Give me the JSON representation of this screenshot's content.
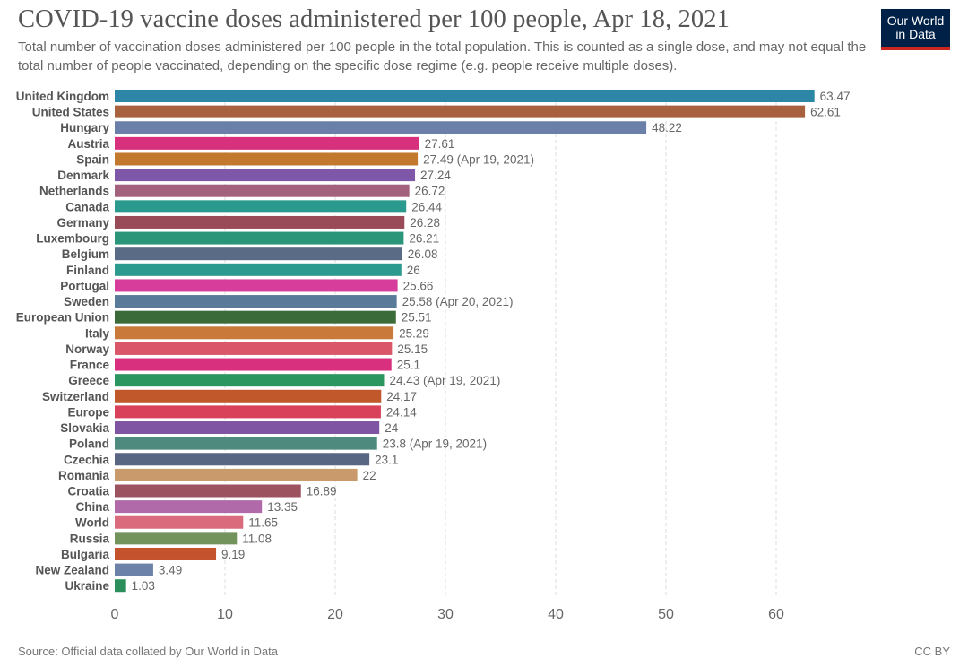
{
  "header": {
    "title": "COVID-19 vaccine doses administered per 100 people, Apr 18, 2021",
    "subtitle": "Total number of vaccination doses administered per 100 people in the total population. This is counted as a single dose, and may not equal the total number of people vaccinated, depending on the specific dose regime (e.g. people receive multiple doses).",
    "logo_line1": "Our World",
    "logo_line2": "in Data"
  },
  "footer": {
    "source": "Source: Official data collated by Our World in Data",
    "license": "CC BY"
  },
  "chart_data": {
    "type": "bar",
    "orientation": "horizontal",
    "title": "COVID-19 vaccine doses administered per 100 people, Apr 18, 2021",
    "xlabel": "",
    "ylabel": "",
    "xlim": [
      0,
      64
    ],
    "xticks": [
      0,
      10,
      20,
      30,
      40,
      50,
      60
    ],
    "grid": "vertical dashed",
    "categories": [
      "United Kingdom",
      "United States",
      "Hungary",
      "Austria",
      "Spain",
      "Denmark",
      "Netherlands",
      "Canada",
      "Germany",
      "Luxembourg",
      "Belgium",
      "Finland",
      "Portugal",
      "Sweden",
      "European Union",
      "Italy",
      "Norway",
      "France",
      "Greece",
      "Switzerland",
      "Europe",
      "Slovakia",
      "Poland",
      "Czechia",
      "Romania",
      "Croatia",
      "China",
      "World",
      "Russia",
      "Bulgaria",
      "New Zealand",
      "Ukraine"
    ],
    "values": [
      63.47,
      62.61,
      48.22,
      27.61,
      27.49,
      27.24,
      26.72,
      26.44,
      26.28,
      26.21,
      26.08,
      26,
      25.66,
      25.58,
      25.51,
      25.29,
      25.15,
      25.1,
      24.43,
      24.17,
      24.14,
      24,
      23.8,
      23.1,
      22,
      16.89,
      13.35,
      11.65,
      11.08,
      9.19,
      3.49,
      1.03
    ],
    "value_labels": [
      "63.47",
      "62.61",
      "48.22",
      "27.61",
      "27.49 (Apr 19, 2021)",
      "27.24",
      "26.72",
      "26.44",
      "26.28",
      "26.21",
      "26.08",
      "26",
      "25.66",
      "25.58 (Apr 20, 2021)",
      "25.51",
      "25.29",
      "25.15",
      "25.1",
      "24.43 (Apr 19, 2021)",
      "24.17",
      "24.14",
      "24",
      "23.8 (Apr 19, 2021)",
      "23.1",
      "22",
      "16.89",
      "13.35",
      "11.65",
      "11.08",
      "9.19",
      "3.49",
      "1.03"
    ],
    "colors": [
      "#2e86a6",
      "#a8613f",
      "#6b80a9",
      "#d7317d",
      "#c2782d",
      "#7e57a8",
      "#a4617e",
      "#2a9a8e",
      "#9a4b58",
      "#2a9579",
      "#5a6b85",
      "#2c9a8f",
      "#d73e9c",
      "#5a7a9a",
      "#3c6b3a",
      "#c97a3a",
      "#d95768",
      "#d8307e",
      "#2c9660",
      "#c1582c",
      "#d9405a",
      "#7f55a3",
      "#4e8b7e",
      "#586583",
      "#c99a6b",
      "#9d5260",
      "#b06aa9",
      "#d96b7c",
      "#72935c",
      "#c4522c",
      "#6c82a8",
      "#2a8f5a"
    ]
  }
}
